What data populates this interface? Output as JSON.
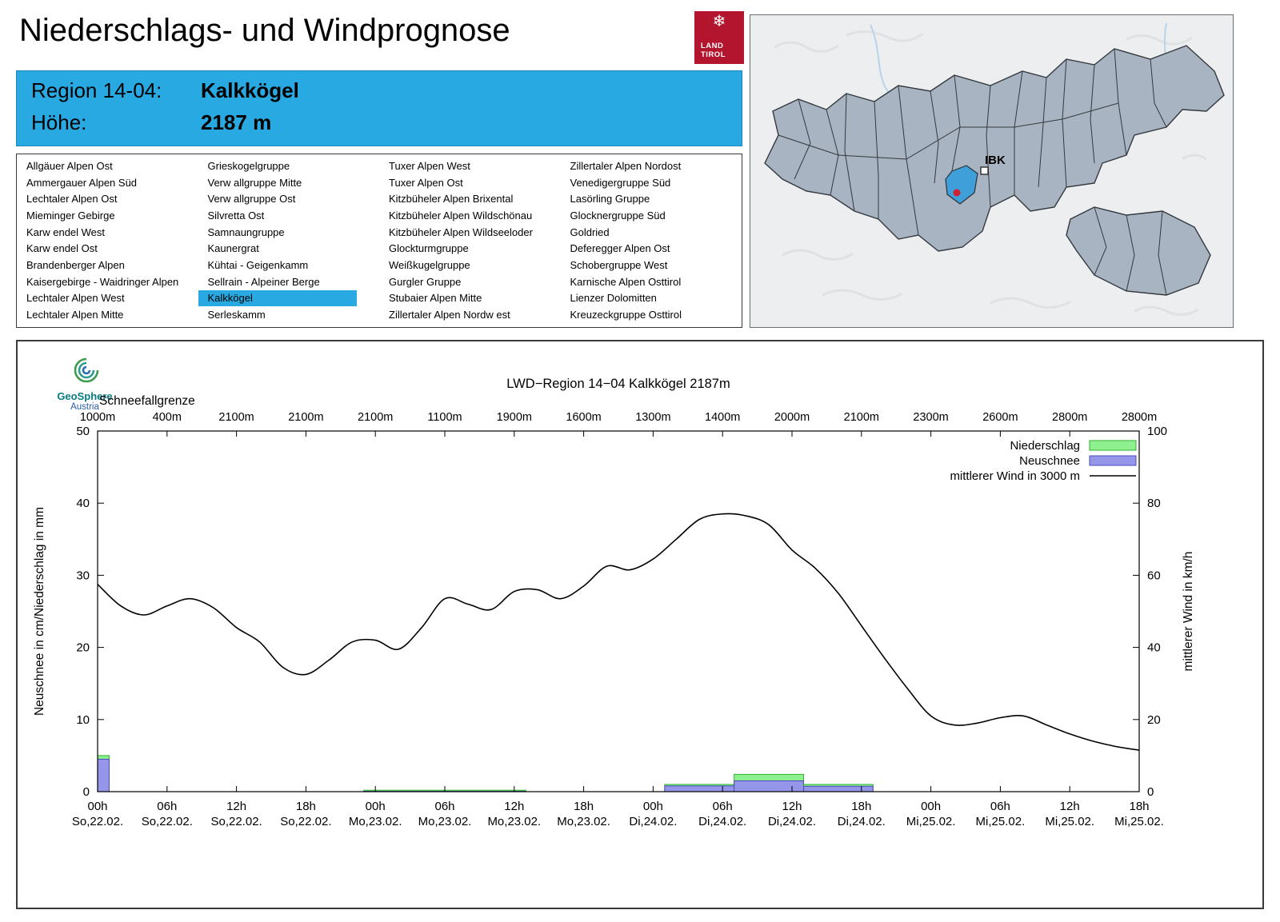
{
  "header": {
    "title": "Niederschlags- und Windprognose",
    "logo_line1": "LAND",
    "logo_line2": "TIROL"
  },
  "region_info": {
    "region_label": "Region 14-04:",
    "region_value": "Kalkkögel",
    "altitude_label": "Höhe:",
    "altitude_value": "2187 m",
    "accent_color": "#29a9e2"
  },
  "map": {
    "city_label": "IBK"
  },
  "geosphere": {
    "line1": "GeoSphere",
    "line2": "Austria"
  },
  "region_list": {
    "selected": "Kalkkögel",
    "columns": [
      [
        "Allgäuer Alpen Ost",
        "Ammergauer Alpen Süd",
        "Lechtaler Alpen Ost",
        "Mieminger Gebirge",
        "Karw endel West",
        "Karw endel Ost",
        "Brandenberger Alpen",
        "Kaisergebirge - Waidringer Alpen",
        "Lechtaler Alpen West",
        "Lechtaler Alpen Mitte"
      ],
      [
        "Grieskogelgruppe",
        "Verw allgruppe Mitte",
        "Verw allgruppe Ost",
        "Silvretta Ost",
        "Samnaungruppe",
        "Kaunergrat",
        "Kühtai - Geigenkamm",
        "Sellrain - Alpeiner Berge",
        "Kalkkögel",
        "Serleskamm"
      ],
      [
        "Tuxer Alpen West",
        "Tuxer Alpen Ost",
        "Kitzbüheler Alpen Brixental",
        "Kitzbüheler Alpen Wildschönau",
        "Kitzbüheler Alpen Wildseeloder",
        "Glockturmgruppe",
        "Weißkugelgruppe",
        "Gurgler Gruppe",
        "Stubaier Alpen Mitte",
        "Zillertaler Alpen Nordw est"
      ],
      [
        "Zillertaler Alpen Nordost",
        "Venedigergruppe Süd",
        "Lasörling Gruppe",
        "Glocknergruppe Süd",
        "Goldried",
        "Deferegger Alpen Ost",
        "Schobergruppe West",
        "Karnische Alpen Osttirol",
        "Lienzer Dolomitten",
        "Kreuzeckgruppe Osttirol"
      ]
    ]
  },
  "chart_data": {
    "type": "mixed",
    "title": "LWD−Region 14−04 Kalkkögel 2187m",
    "ylabel_left": "Neuschnee in cm/Niederschlag in mm",
    "ylabel_right": "mittlerer Wind in km/h",
    "ylim_left": [
      0,
      50
    ],
    "ylim_right": [
      0,
      100
    ],
    "y_left_ticks": [
      0,
      10,
      20,
      30,
      40,
      50
    ],
    "y_right_ticks": [
      0,
      20,
      40,
      60,
      80,
      100
    ],
    "x_hours_total": 90,
    "x_ticks": [
      {
        "hour": 0,
        "time": "00h",
        "date": "So,22.02."
      },
      {
        "hour": 6,
        "time": "06h",
        "date": "So,22.02."
      },
      {
        "hour": 12,
        "time": "12h",
        "date": "So,22.02."
      },
      {
        "hour": 18,
        "time": "18h",
        "date": "So,22.02."
      },
      {
        "hour": 24,
        "time": "00h",
        "date": "Mo,23.02."
      },
      {
        "hour": 30,
        "time": "06h",
        "date": "Mo,23.02."
      },
      {
        "hour": 36,
        "time": "12h",
        "date": "Mo,23.02."
      },
      {
        "hour": 42,
        "time": "18h",
        "date": "Mo,23.02."
      },
      {
        "hour": 48,
        "time": "00h",
        "date": "Di,24.02."
      },
      {
        "hour": 54,
        "time": "06h",
        "date": "Di,24.02."
      },
      {
        "hour": 60,
        "time": "12h",
        "date": "Di,24.02."
      },
      {
        "hour": 66,
        "time": "18h",
        "date": "Di,24.02."
      },
      {
        "hour": 72,
        "time": "00h",
        "date": "Mi,25.02."
      },
      {
        "hour": 78,
        "time": "06h",
        "date": "Mi,25.02."
      },
      {
        "hour": 84,
        "time": "12h",
        "date": "Mi,25.02."
      },
      {
        "hour": 90,
        "time": "18h",
        "date": "Mi,25.02."
      }
    ],
    "schneefallgrenze_label": "Schneefallgrenze",
    "schneefallgrenze": [
      "1000m",
      "400m",
      "2100m",
      "2100m",
      "2100m",
      "1100m",
      "1900m",
      "1600m",
      "1300m",
      "1400m",
      "2000m",
      "2100m",
      "2300m",
      "2600m",
      "2800m",
      "2800m"
    ],
    "legend": [
      {
        "label": "Niederschlag",
        "type": "box",
        "fill": "#8ef08e",
        "stroke": "#2db22d"
      },
      {
        "label": "Neuschnee",
        "type": "box",
        "fill": "#9595ea",
        "stroke": "#4b4bc0"
      },
      {
        "label": "mittlerer Wind in 3000 m",
        "type": "line",
        "stroke": "#000000"
      }
    ],
    "colors": {
      "niederschlag_fill": "#8ef08e",
      "niederschlag_stroke": "#2db22d",
      "neuschnee_fill": "#9595ea",
      "neuschnee_stroke": "#4b4bc0",
      "wind_stroke": "#000000"
    },
    "bars": [
      {
        "start": 0,
        "end": 1,
        "niederschlag": 5.0,
        "neuschnee": 4.5
      },
      {
        "start": 23,
        "end": 37,
        "niederschlag": 0.2,
        "neuschnee": 0.05
      },
      {
        "start": 49,
        "end": 55,
        "niederschlag": 1.0,
        "neuschnee": 0.8
      },
      {
        "start": 55,
        "end": 61,
        "niederschlag": 2.4,
        "neuschnee": 1.5
      },
      {
        "start": 61,
        "end": 67,
        "niederschlag": 1.0,
        "neuschnee": 0.75
      }
    ],
    "wind": {
      "name": "mittlerer Wind in 3000 m",
      "unit": "km/h",
      "step_hours": 2,
      "values": [
        57.5,
        51.5,
        49,
        51.5,
        53.5,
        51,
        45.5,
        41.5,
        34.5,
        32.5,
        36.5,
        41.5,
        42,
        39.5,
        45.5,
        53.5,
        52,
        50.5,
        55.5,
        56,
        53.5,
        57,
        62.5,
        61.5,
        64.5,
        70,
        75.5,
        77,
        76.5,
        74,
        67,
        62,
        55,
        46,
        37,
        28.5,
        21,
        18.5,
        19,
        20.5,
        21,
        18.5,
        16,
        14,
        12.5,
        11.5
      ]
    }
  }
}
